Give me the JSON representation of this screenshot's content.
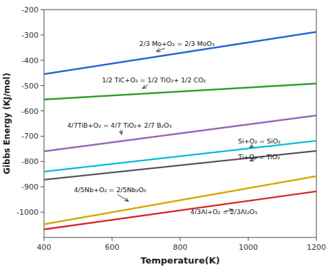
{
  "chart_data": {
    "type": "line",
    "x_label": "Temperature(K)",
    "y_label": "Gibbs Energy (KJ/mol)",
    "x": [
      400,
      1200
    ],
    "xlim": [
      400,
      1200
    ],
    "ylim": [
      -1100,
      -200
    ],
    "xticks": [
      400,
      600,
      800,
      1000,
      1200
    ],
    "yticks": [
      -200,
      -300,
      -400,
      -500,
      -600,
      -700,
      -800,
      -900,
      -1000
    ],
    "grid": false,
    "series": [
      {
        "color": "#2166d0",
        "values": [
          -455,
          -288
        ]
      },
      {
        "color": "#2ca02c",
        "values": [
          -555,
          -492
        ]
      },
      {
        "color": "#9467bd",
        "values": [
          -760,
          -618
        ]
      },
      {
        "color": "#00bcd4",
        "values": [
          -840,
          -718
        ]
      },
      {
        "color": "#555555",
        "values": [
          -872,
          -758
        ]
      },
      {
        "color": "#d4a800",
        "values": [
          -1048,
          -858
        ]
      },
      {
        "color": "#d62728",
        "values": [
          -1068,
          -918
        ]
      }
    ],
    "annotations": [
      {
        "text": "2/3 Mo+O₂ = 2/3 MoO₃",
        "text_x": 680,
        "text_y": -335,
        "x": 730,
        "y": -365
      },
      {
        "text": "1/2 TiC+O₂ = 1/2 TiO₂+ 1/2 CO₂",
        "text_x": 570,
        "text_y": -478,
        "x": 690,
        "y": -512
      },
      {
        "text": "4/7TiB+O₂ = 4/7 TiO₂+ 2/7 B₂O₃",
        "text_x": 468,
        "text_y": -658,
        "x": 628,
        "y": -693
      },
      {
        "text": "Si+O₂ = SiO₂",
        "text_x": 970,
        "text_y": -718,
        "x": 1005,
        "y": -745
      },
      {
        "text": "Ti+O₂ = TiO₂",
        "text_x": 970,
        "text_y": -782,
        "x": 1005,
        "y": -798
      },
      {
        "text": "4/5Nb+O₂ = 2/5Nb₂O₅",
        "text_x": 488,
        "text_y": -912,
        "x": 648,
        "y": -957
      },
      {
        "text": "4/3Al+O₂ = 2/3Al₂O₃",
        "text_x": 830,
        "text_y": -998,
        "x": 955,
        "y": -990
      }
    ]
  }
}
